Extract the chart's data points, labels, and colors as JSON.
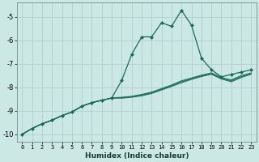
{
  "xlabel": "Humidex (Indice chaleur)",
  "bg_color": "#cce8e4",
  "grid_color": "#b0d0cc",
  "line_color": "#1a6b5a",
  "xlim": [
    -0.5,
    23.5
  ],
  "ylim": [
    -10.3,
    -4.4
  ],
  "yticks": [
    -10,
    -9,
    -8,
    -7,
    -6,
    -5
  ],
  "xticks": [
    0,
    1,
    2,
    3,
    4,
    5,
    6,
    7,
    8,
    9,
    10,
    11,
    12,
    13,
    14,
    15,
    16,
    17,
    18,
    19,
    20,
    21,
    22,
    23
  ],
  "lines": [
    {
      "x": [
        0,
        1,
        2,
        3,
        4,
        5,
        6,
        7,
        8,
        9,
        10,
        11,
        12,
        13,
        14,
        15,
        16,
        17,
        18,
        19,
        20,
        21,
        22,
        23
      ],
      "y": [
        -10.0,
        -9.75,
        -9.55,
        -9.4,
        -9.2,
        -9.05,
        -8.8,
        -8.65,
        -8.55,
        -8.45,
        -7.7,
        -6.6,
        -5.85,
        -5.85,
        -5.25,
        -5.4,
        -4.72,
        -5.35,
        -6.75,
        -7.25,
        -7.55,
        -7.45,
        -7.35,
        -7.25
      ],
      "marker": true
    },
    {
      "x": [
        0,
        1,
        2,
        3,
        4,
        5,
        6,
        7,
        8,
        9,
        10,
        11,
        12,
        13,
        14,
        15,
        16,
        17,
        18,
        19,
        20,
        21,
        22,
        23
      ],
      "y": [
        -10.0,
        -9.75,
        -9.55,
        -9.4,
        -9.2,
        -9.05,
        -8.8,
        -8.65,
        -8.55,
        -8.45,
        -8.42,
        -8.38,
        -8.3,
        -8.2,
        -8.05,
        -7.9,
        -7.72,
        -7.6,
        -7.48,
        -7.38,
        -7.58,
        -7.68,
        -7.5,
        -7.38
      ],
      "marker": false
    },
    {
      "x": [
        0,
        1,
        2,
        3,
        4,
        5,
        6,
        7,
        8,
        9,
        10,
        11,
        12,
        13,
        14,
        15,
        16,
        17,
        18,
        19,
        20,
        21,
        22,
        23
      ],
      "y": [
        -10.0,
        -9.75,
        -9.55,
        -9.4,
        -9.2,
        -9.05,
        -8.8,
        -8.65,
        -8.55,
        -8.45,
        -8.44,
        -8.4,
        -8.33,
        -8.23,
        -8.08,
        -7.93,
        -7.76,
        -7.63,
        -7.51,
        -7.42,
        -7.62,
        -7.72,
        -7.54,
        -7.42
      ],
      "marker": false
    },
    {
      "x": [
        0,
        1,
        2,
        3,
        4,
        5,
        6,
        7,
        8,
        9,
        10,
        11,
        12,
        13,
        14,
        15,
        16,
        17,
        18,
        19,
        20,
        21,
        22,
        23
      ],
      "y": [
        -10.0,
        -9.75,
        -9.55,
        -9.4,
        -9.2,
        -9.05,
        -8.8,
        -8.65,
        -8.55,
        -8.45,
        -8.46,
        -8.42,
        -8.36,
        -8.26,
        -8.11,
        -7.96,
        -7.8,
        -7.66,
        -7.54,
        -7.44,
        -7.64,
        -7.76,
        -7.58,
        -7.44
      ],
      "marker": false
    }
  ]
}
